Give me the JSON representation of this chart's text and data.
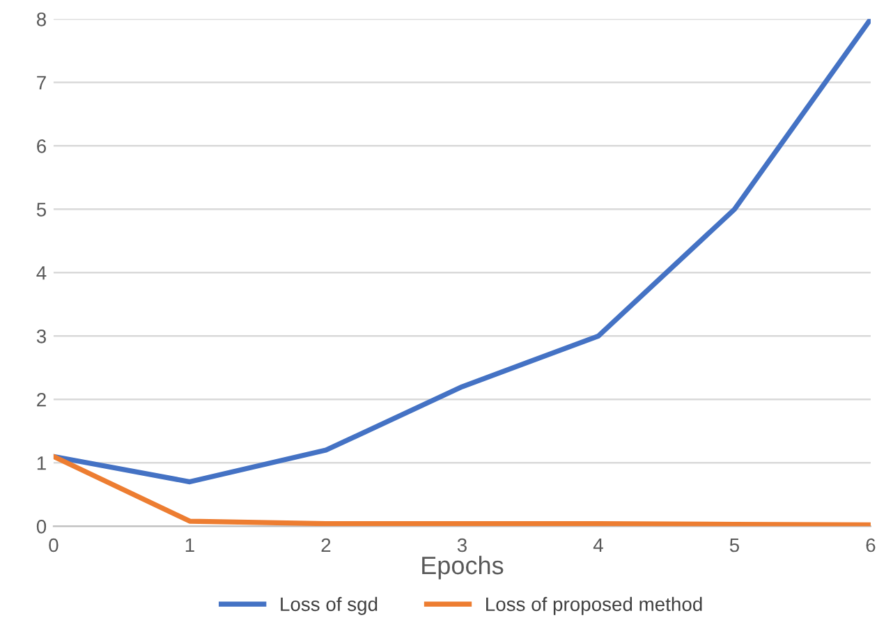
{
  "chart_data": {
    "type": "line",
    "xlabel": "Epochs",
    "x": [
      0,
      1,
      2,
      3,
      4,
      5,
      6
    ],
    "series": [
      {
        "name": "Loss of sgd",
        "color": "#4472c4",
        "values": [
          1.1,
          0.7,
          1.2,
          2.2,
          3.0,
          5.0,
          8.0
        ]
      },
      {
        "name": "Loss of proposed method",
        "color": "#ed7d31",
        "values": [
          1.1,
          0.08,
          0.04,
          0.04,
          0.04,
          0.03,
          0.02
        ]
      }
    ],
    "xlim": [
      0,
      6
    ],
    "xticks": [
      0,
      1,
      2,
      3,
      4,
      5,
      6
    ],
    "ylim": [
      0,
      8
    ],
    "yticks": [
      0,
      1,
      2,
      3,
      4,
      5,
      6,
      7,
      8
    ],
    "grid": "y",
    "legend": "bottom",
    "marker": "none",
    "line_style": "solid"
  }
}
